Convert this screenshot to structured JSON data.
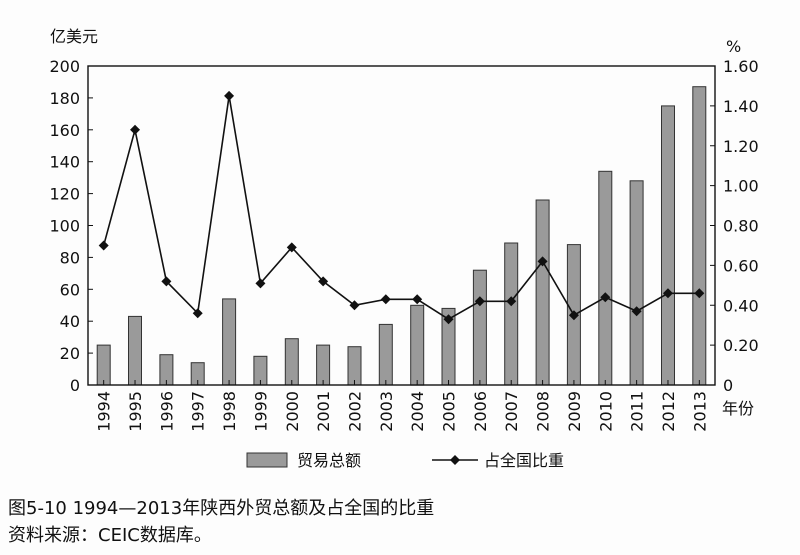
{
  "chart_data": {
    "type": "bar+line",
    "y_left_unit": "亿美元",
    "y_right_unit": "%",
    "x_unit": "年份",
    "categories": [
      "1994",
      "1995",
      "1996",
      "1997",
      "1998",
      "1999",
      "2000",
      "2001",
      "2002",
      "2003",
      "2004",
      "2005",
      "2006",
      "2007",
      "2008",
      "2009",
      "2010",
      "2011",
      "2012",
      "2013"
    ],
    "y_left_range": [
      0,
      200
    ],
    "y_left_ticks": [
      "0",
      "20",
      "40",
      "60",
      "80",
      "100",
      "120",
      "140",
      "160",
      "180",
      "200"
    ],
    "y_right_range": [
      0,
      1.6
    ],
    "y_right_ticks": [
      "0",
      "0.20",
      "0.40",
      "0.60",
      "0.80",
      "1.00",
      "1.20",
      "1.40",
      "1.60"
    ],
    "series": [
      {
        "name": "贸易总额",
        "kind": "bar",
        "axis": "left",
        "values": [
          25,
          43,
          19,
          14,
          54,
          18,
          29,
          25,
          24,
          38,
          50,
          48,
          72,
          89,
          116,
          88,
          134,
          128,
          175,
          187
        ]
      },
      {
        "name": "占全国比重",
        "kind": "line",
        "axis": "right",
        "values": [
          0.7,
          1.28,
          0.52,
          0.36,
          1.45,
          0.51,
          0.69,
          0.52,
          0.4,
          0.43,
          0.43,
          0.33,
          0.42,
          0.42,
          0.62,
          0.35,
          0.44,
          0.37,
          0.46,
          0.46
        ]
      }
    ],
    "grid": false,
    "legend_position": "bottom",
    "colors": {
      "bar_fill": "#9a9a9a",
      "bar_stroke": "#333333",
      "line": "#111111"
    }
  },
  "caption": {
    "title": "图5-10  1994—2013年陕西外贸总额及占全国的比重",
    "source": "资料来源：CEIC数据库。"
  }
}
